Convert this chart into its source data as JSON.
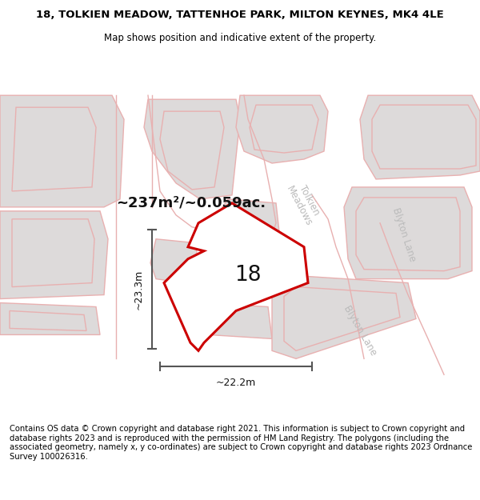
{
  "title": "18, TOLKIEN MEADOW, TATTENHOE PARK, MILTON KEYNES, MK4 4LE",
  "subtitle": "Map shows position and indicative extent of the property.",
  "footer": "Contains OS data © Crown copyright and database right 2021. This information is subject to Crown copyright and database rights 2023 and is reproduced with the permission of HM Land Registry. The polygons (including the associated geometry, namely x, y co-ordinates) are subject to Crown copyright and database rights 2023 Ordnance Survey 100026316.",
  "area_label": "~237m²/~0.059ac.",
  "width_label": "~22.2m",
  "height_label": "~23.3m",
  "property_label": "18",
  "map_bg": "#eeecec",
  "road_color": "#ffffff",
  "building_fill": "#dddada",
  "building_edge": "#e8b0b0",
  "road_edge": "#e8b0b0",
  "subject_color": "#cc0000",
  "dim_color": "#555555",
  "road_label_color": "#bbbbbb",
  "title_fontsize": 9.5,
  "subtitle_fontsize": 8.5,
  "footer_fontsize": 7.2
}
